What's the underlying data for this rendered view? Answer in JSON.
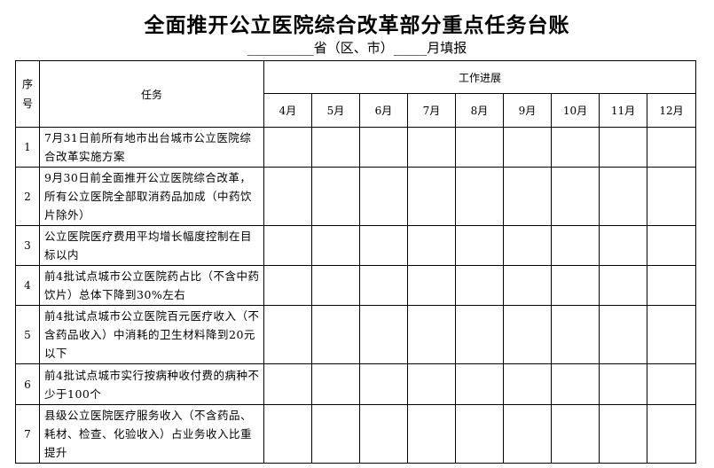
{
  "title": "全面推开公立医院综合改革部分重点任务台账",
  "subtitle": "__________省（区、市）_____月填报",
  "table": {
    "headers": {
      "seq": "序号",
      "seq_line1": "序",
      "seq_line2": "号",
      "task": "任务",
      "progress": "工作进展",
      "months": [
        "4月",
        "5月",
        "6月",
        "7月",
        "8月",
        "9月",
        "10月",
        "11月",
        "12月"
      ]
    },
    "rows": [
      {
        "seq": "1",
        "task": "7月31日前所有地市出台城市公立医院综合改革实施方案"
      },
      {
        "seq": "2",
        "task": "9月30日前全面推开公立医院综合改革，所有公立医院全部取消药品加成（中药饮片除外）"
      },
      {
        "seq": "3",
        "task": "公立医院医疗费用平均增长幅度控制在目标以内"
      },
      {
        "seq": "4",
        "task": "前4批试点城市公立医院药占比（不含中药饮片）总体下降到30%左右"
      },
      {
        "seq": "5",
        "task": "前4批试点城市公立医院百元医疗收入（不含药品收入）中消耗的卫生材料降到20元以下"
      },
      {
        "seq": "6",
        "task": "前4批试点城市实行按病种收付费的病种不少于100个"
      },
      {
        "seq": "7",
        "task": "县级公立医院医疗服务收入（不含药品、耗材、检查、化验收入）占业务收入比重提升"
      }
    ]
  }
}
